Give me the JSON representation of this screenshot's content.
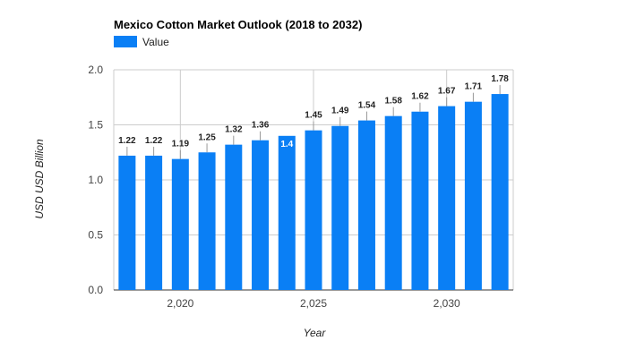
{
  "chart_data": {
    "type": "bar",
    "title": "Mexico Cotton Market Outlook (2018 to 2032)",
    "xlabel": "Year",
    "ylabel": "USD USD Billion",
    "x": [
      2018,
      2019,
      2020,
      2021,
      2022,
      2023,
      2024,
      2025,
      2026,
      2027,
      2028,
      2029,
      2030,
      2031,
      2032
    ],
    "series": [
      {
        "name": "Value",
        "color": "#0a7ff5",
        "values": [
          1.22,
          1.22,
          1.19,
          1.25,
          1.32,
          1.36,
          1.4,
          1.45,
          1.49,
          1.54,
          1.58,
          1.62,
          1.67,
          1.71,
          1.78
        ],
        "labels": [
          "1.22",
          "1.22",
          "1.19",
          "1.25",
          "1.32",
          "1.36",
          "1.4",
          "1.45",
          "1.49",
          "1.54",
          "1.58",
          "1.62",
          "1.67",
          "1.71",
          "1.78"
        ]
      }
    ],
    "x_ticks": [
      {
        "value": 2020,
        "label": "2,020"
      },
      {
        "value": 2025,
        "label": "2,025"
      },
      {
        "value": 2030,
        "label": "2,030"
      }
    ],
    "y_ticks": [
      {
        "value": 0,
        "label": "0.0"
      },
      {
        "value": 0.5,
        "label": "0.5"
      },
      {
        "value": 1,
        "label": "1.0"
      },
      {
        "value": 1.5,
        "label": "1.5"
      },
      {
        "value": 2,
        "label": "2.0"
      }
    ],
    "ylim": [
      0,
      2
    ],
    "grid": true,
    "legend_position": "top-left",
    "label_inside_indices": [
      6
    ]
  }
}
